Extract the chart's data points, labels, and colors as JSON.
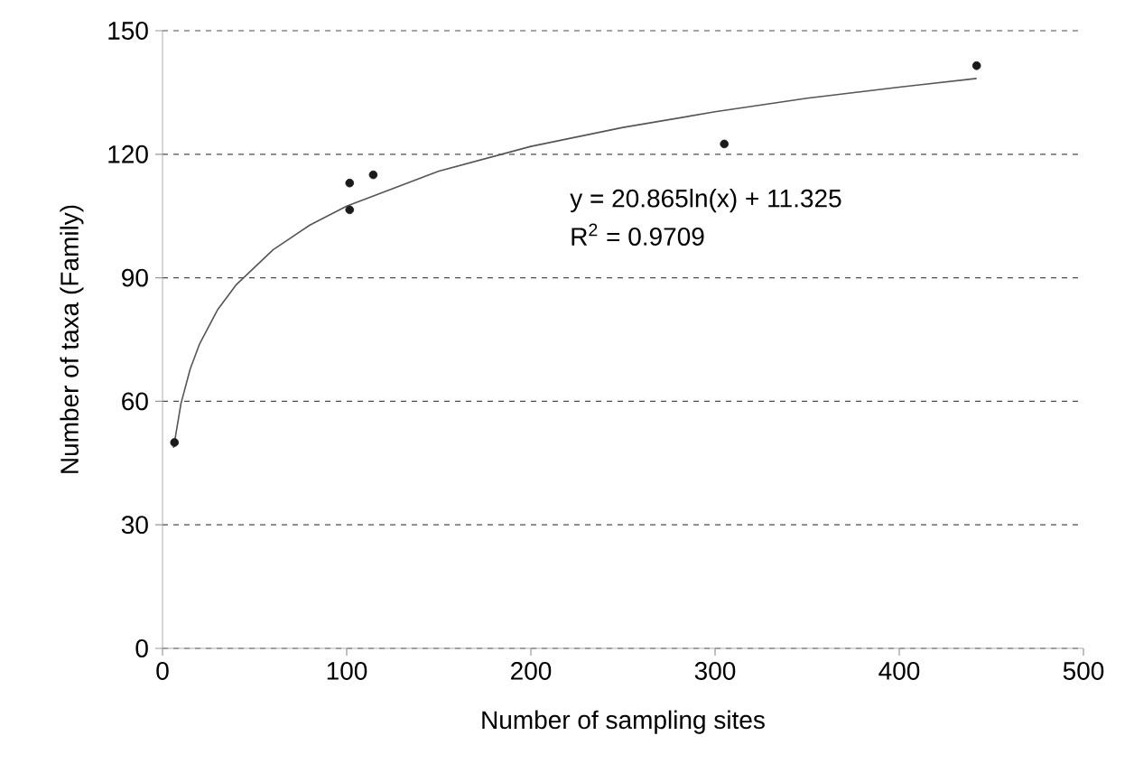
{
  "chart_data": {
    "type": "scatter",
    "xlabel": "Number of sampling sites",
    "ylabel": "Number of taxa (Family)",
    "xlim": [
      0,
      500
    ],
    "xticks": [
      0,
      100,
      200,
      300,
      400,
      500
    ],
    "ylim": [
      0,
      150
    ],
    "yticks": [
      0,
      30,
      60,
      90,
      120,
      150
    ],
    "grid": "y",
    "series": [
      {
        "color": "#1a1a1a",
        "marker": "circle",
        "x": [
          6.5,
          101.6,
          101.6,
          114.4,
          305,
          442
        ],
        "values": [
          50,
          113,
          106.5,
          115,
          122.5,
          141.5
        ]
      },
      {
        "type": "line",
        "color": "#555555",
        "marker": "none",
        "line_style": "solid",
        "x": [
          6,
          10,
          15,
          20,
          30,
          40,
          60,
          80,
          100,
          150,
          200,
          250,
          300,
          350,
          400,
          442
        ],
        "values": [
          48.7,
          59.4,
          67.8,
          73.8,
          82.3,
          88.3,
          96.8,
          102.8,
          107.4,
          115.9,
          121.9,
          126.5,
          130.3,
          133.6,
          136.3,
          138.4
        ]
      }
    ],
    "annotations": [
      "y = 20.865ln(x) + 11.325",
      "R$^{2}$ = 0.9709"
    ]
  }
}
